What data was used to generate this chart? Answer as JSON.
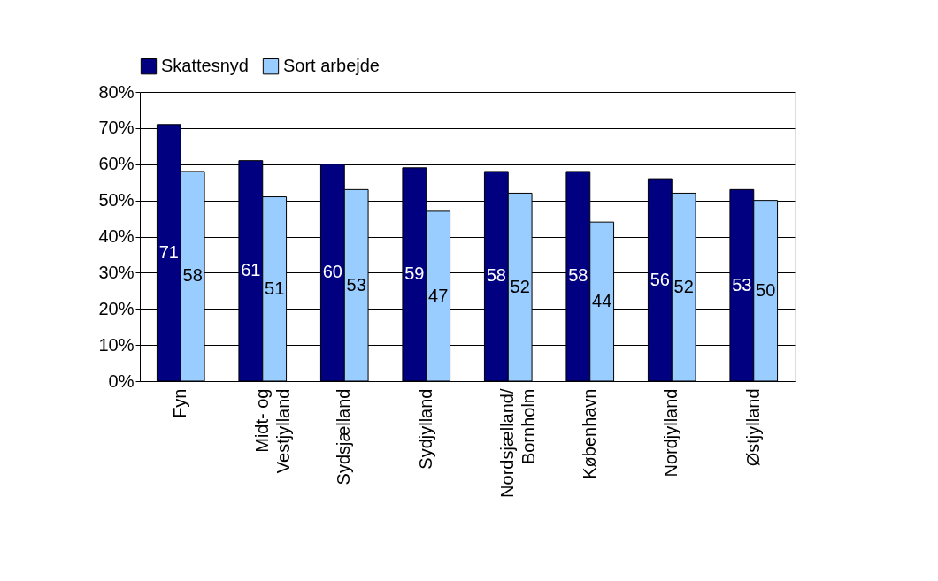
{
  "chart_data": {
    "type": "bar",
    "categories": [
      "Fyn",
      "Midt- og\nVestjylland",
      "Sydsjælland",
      "Sydjylland",
      "Nordsjælland/\nBornholm",
      "København",
      "Nordjylland",
      "Østjylland"
    ],
    "series": [
      {
        "name": "Skattesnyd",
        "color": "#000080",
        "values": [
          71,
          61,
          60,
          59,
          58,
          58,
          56,
          53
        ]
      },
      {
        "name": "Sort arbejde",
        "color": "#99ccff",
        "values": [
          58,
          51,
          53,
          47,
          52,
          44,
          52,
          50
        ]
      }
    ],
    "ylim": [
      0,
      80
    ],
    "yticks": [
      {
        "value": 0,
        "label": "0%"
      },
      {
        "value": 10,
        "label": "10%"
      },
      {
        "value": 20,
        "label": "20%"
      },
      {
        "value": 30,
        "label": "30%"
      },
      {
        "value": 40,
        "label": "40%"
      },
      {
        "value": 50,
        "label": "50%"
      },
      {
        "value": 60,
        "label": "60%"
      },
      {
        "value": 70,
        "label": "70%"
      },
      {
        "value": 80,
        "label": "80%"
      }
    ],
    "grid": "y",
    "legend": "top",
    "data_labels": true
  }
}
